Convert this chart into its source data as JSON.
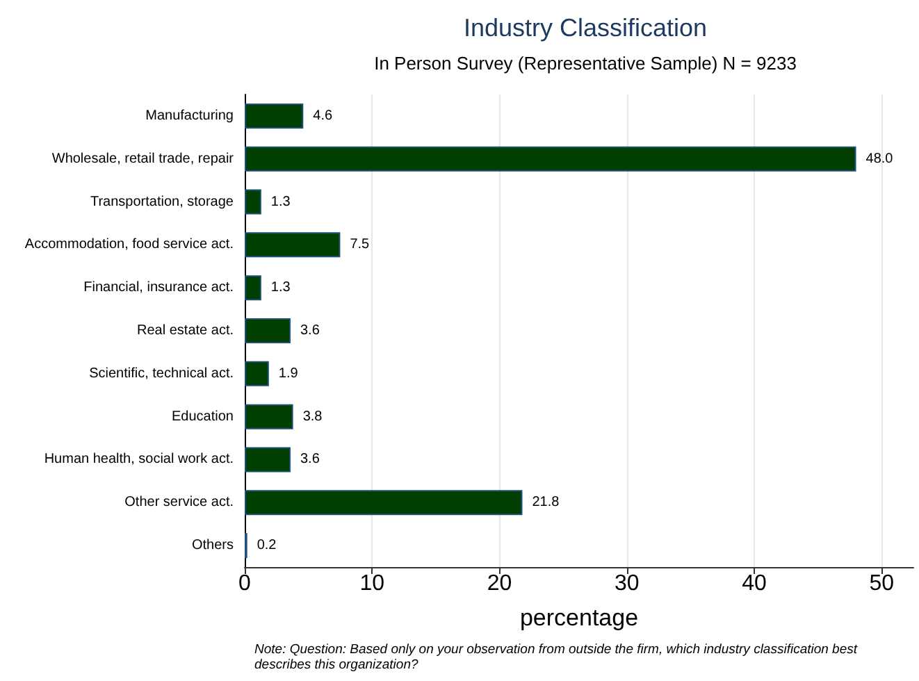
{
  "chart_data": {
    "type": "bar",
    "orientation": "horizontal",
    "title": "Industry Classification",
    "subtitle": "In Person Survey (Representative Sample) N = 9233",
    "xlabel": "percentage",
    "categories": [
      "Manufacturing",
      "Wholesale, retail trade, repair",
      "Transportation, storage",
      "Accommodation, food service act.",
      "Financial, insurance act.",
      "Real estate act.",
      "Scientific, technical act.",
      "Education",
      "Human health, social work act.",
      "Other service act.",
      "Others"
    ],
    "values": [
      4.6,
      48.0,
      1.3,
      7.5,
      1.3,
      3.6,
      1.9,
      3.8,
      3.6,
      21.8,
      0.2
    ],
    "value_labels": [
      "4.6",
      "48.0",
      "1.3",
      "7.5",
      "1.3",
      "3.6",
      "1.9",
      "3.8",
      "3.6",
      "21.8",
      "0.2"
    ],
    "color": "#003f00",
    "xlim": [
      0,
      52.5
    ],
    "xticks": [
      0,
      10,
      20,
      30,
      40,
      50
    ],
    "grid": "x",
    "annotations": [
      "Note: Question: Based only on your observation from outside the firm, which industry classification best describes this organization?"
    ]
  }
}
